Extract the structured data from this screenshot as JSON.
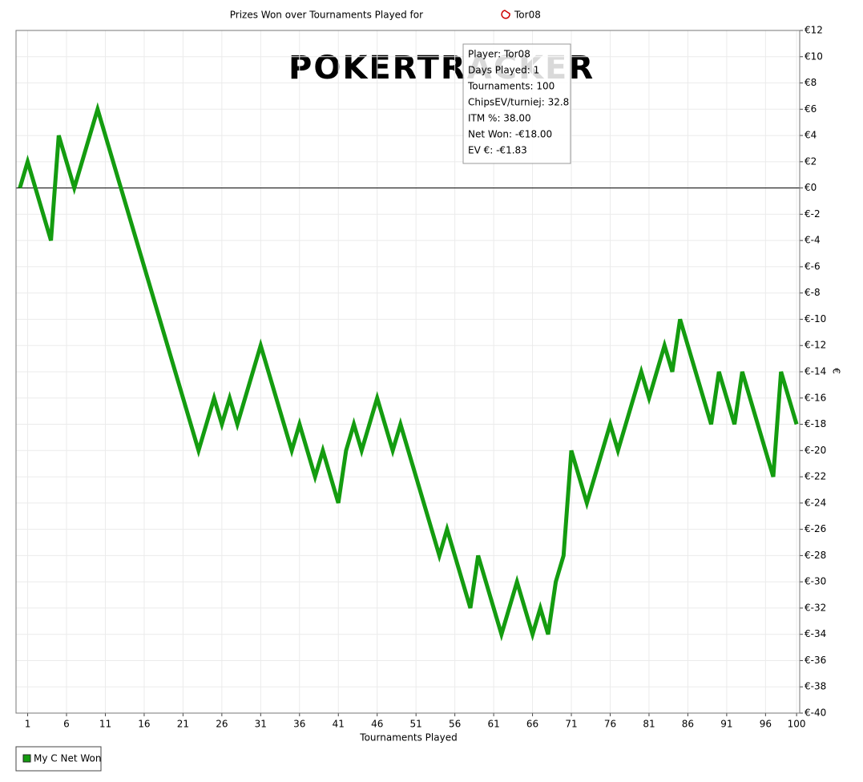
{
  "chart_data": {
    "type": "line",
    "title": "Prizes Won over Tournaments Played for",
    "title_player": "Tor08",
    "watermark": "POKERTRACKER",
    "xlabel": "Tournaments Played",
    "ylabel": "€",
    "x": [
      0,
      1,
      4,
      5,
      7,
      10,
      23,
      25,
      26,
      27,
      28,
      31,
      35,
      36,
      38,
      39,
      41,
      42,
      43,
      44,
      46,
      48,
      49,
      54,
      55,
      58,
      59,
      62,
      64,
      66,
      67,
      68,
      69,
      70,
      71,
      73,
      76,
      77,
      80,
      81,
      83,
      84,
      85,
      89,
      90,
      92,
      93,
      97,
      98,
      100
    ],
    "series": [
      {
        "name": "My C Net Won",
        "color": "#149c10",
        "values": [
          0,
          2,
          -4,
          4,
          0,
          6,
          -20,
          -16,
          -18,
          -16,
          -18,
          -12,
          -20,
          -18,
          -22,
          -20,
          -24,
          -20,
          -18,
          -20,
          -16,
          -20,
          -18,
          -28,
          -26,
          -32,
          -28,
          -34,
          -30,
          -34,
          -32,
          -34,
          -30,
          -28,
          -20,
          -24,
          -18,
          -20,
          -14,
          -16,
          -12,
          -14,
          -10,
          -18,
          -14,
          -18,
          -14,
          -22,
          -14,
          -18
        ]
      }
    ],
    "xlim": [
      -0.5,
      100.4
    ],
    "xticks": [
      1,
      6,
      11,
      16,
      21,
      26,
      31,
      36,
      41,
      46,
      51,
      56,
      61,
      66,
      71,
      76,
      81,
      86,
      91,
      96,
      100
    ],
    "ylim": [
      -40,
      12
    ],
    "yticks": [
      {
        "value": 12,
        "label": "€12"
      },
      {
        "value": 10,
        "label": "€10"
      },
      {
        "value": 8,
        "label": "€8"
      },
      {
        "value": 6,
        "label": "€6"
      },
      {
        "value": 4,
        "label": "€4"
      },
      {
        "value": 2,
        "label": "€2"
      },
      {
        "value": 0,
        "label": "€0"
      },
      {
        "value": -2,
        "label": "€-2"
      },
      {
        "value": -4,
        "label": "€-4"
      },
      {
        "value": -6,
        "label": "€-6"
      },
      {
        "value": -8,
        "label": "€-8"
      },
      {
        "value": -10,
        "label": "€-10"
      },
      {
        "value": -12,
        "label": "€-12"
      },
      {
        "value": -14,
        "label": "€-14"
      },
      {
        "value": -16,
        "label": "€-16"
      },
      {
        "value": -18,
        "label": "€-18"
      },
      {
        "value": -20,
        "label": "€-20"
      },
      {
        "value": -22,
        "label": "€-22"
      },
      {
        "value": -24,
        "label": "€-24"
      },
      {
        "value": -26,
        "label": "€-26"
      },
      {
        "value": -28,
        "label": "€-28"
      },
      {
        "value": -30,
        "label": "€-30"
      },
      {
        "value": -32,
        "label": "€-32"
      },
      {
        "value": -34,
        "label": "€-34"
      },
      {
        "value": -36,
        "label": "€-36"
      },
      {
        "value": -38,
        "label": "€-38"
      },
      {
        "value": -40,
        "label": "€-40"
      }
    ],
    "grid": true,
    "annotations": [
      "Player: Tor08",
      "Days Played: 1",
      "Tournaments: 100",
      "ChipsEV/turniej: 32.8",
      "ITM %: 38.00",
      "Net Won: -€18.00",
      "EV €: -€1.83"
    ]
  }
}
